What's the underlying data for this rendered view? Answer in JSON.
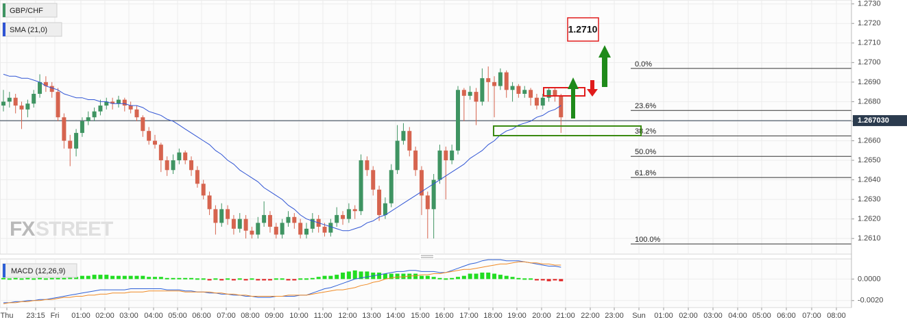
{
  "chart_data": {
    "type": "candlestick",
    "symbol": "GBP/CHF",
    "indicator_label": "SMA (21,0)",
    "watermark": [
      "FX",
      "STREET"
    ],
    "up_color": "#3f9462",
    "down_color": "#d6644f",
    "grid": true,
    "ylim": [
      1.2602,
      1.2732
    ],
    "yticks": [
      {
        "value": 1.273,
        "label": "1.2730"
      },
      {
        "value": 1.272,
        "label": "1.2720"
      },
      {
        "value": 1.271,
        "label": "1.2710"
      },
      {
        "value": 1.27,
        "label": "1.2700"
      },
      {
        "value": 1.269,
        "label": "1.2690"
      },
      {
        "value": 1.268,
        "label": "1.2680"
      },
      {
        "value": 1.267,
        "label": "1.2670"
      },
      {
        "value": 1.266,
        "label": "1.2660"
      },
      {
        "value": 1.265,
        "label": "1.2650"
      },
      {
        "value": 1.264,
        "label": "1.2640"
      },
      {
        "value": 1.263,
        "label": "1.2630"
      },
      {
        "value": 1.262,
        "label": "1.2620"
      },
      {
        "value": 1.261,
        "label": "1.2610"
      }
    ],
    "last_price": {
      "value": 1.26703,
      "label": "1.267030"
    },
    "target_label": "1.2710",
    "ohlc": [
      [
        1.2678,
        1.2686,
        1.2675,
        1.268
      ],
      [
        1.268,
        1.2685,
        1.2677,
        1.2682
      ],
      [
        1.2682,
        1.2684,
        1.2674,
        1.2678
      ],
      [
        1.2678,
        1.268,
        1.2666,
        1.2676
      ],
      [
        1.2676,
        1.2681,
        1.2672,
        1.2679
      ],
      [
        1.2679,
        1.2686,
        1.2677,
        1.2684
      ],
      [
        1.2684,
        1.2694,
        1.2682,
        1.269
      ],
      [
        1.269,
        1.2693,
        1.2685,
        1.2688
      ],
      [
        1.2688,
        1.269,
        1.2682,
        1.2685
      ],
      [
        1.2685,
        1.2687,
        1.267,
        1.2672
      ],
      [
        1.2672,
        1.2674,
        1.2656,
        1.266
      ],
      [
        1.266,
        1.2663,
        1.2647,
        1.2656
      ],
      [
        1.2656,
        1.2666,
        1.2652,
        1.2664
      ],
      [
        1.2664,
        1.2672,
        1.2662,
        1.267
      ],
      [
        1.267,
        1.2675,
        1.2668,
        1.2672
      ],
      [
        1.2672,
        1.2677,
        1.267,
        1.2675
      ],
      [
        1.2675,
        1.2681,
        1.2673,
        1.2678
      ],
      [
        1.2678,
        1.2682,
        1.2676,
        1.268
      ],
      [
        1.268,
        1.2682,
        1.2676,
        1.2679
      ],
      [
        1.2679,
        1.2683,
        1.2677,
        1.2681
      ],
      [
        1.2681,
        1.2682,
        1.2675,
        1.2678
      ],
      [
        1.2678,
        1.268,
        1.2674,
        1.2676
      ],
      [
        1.2676,
        1.2678,
        1.267,
        1.2672
      ],
      [
        1.2672,
        1.2673,
        1.2662,
        1.2665
      ],
      [
        1.2665,
        1.2667,
        1.2658,
        1.266
      ],
      [
        1.266,
        1.2663,
        1.2656,
        1.2658
      ],
      [
        1.2658,
        1.2659,
        1.2644,
        1.265
      ],
      [
        1.265,
        1.2652,
        1.2642,
        1.2645
      ],
      [
        1.2645,
        1.2653,
        1.2643,
        1.265
      ],
      [
        1.265,
        1.2656,
        1.2648,
        1.2654
      ],
      [
        1.2654,
        1.2655,
        1.2648,
        1.265
      ],
      [
        1.265,
        1.2652,
        1.2642,
        1.2645
      ],
      [
        1.2645,
        1.2647,
        1.2636,
        1.2638
      ],
      [
        1.2638,
        1.264,
        1.263,
        1.2632
      ],
      [
        1.2632,
        1.2634,
        1.2622,
        1.2625
      ],
      [
        1.2625,
        1.2627,
        1.2612,
        1.2618
      ],
      [
        1.2618,
        1.2628,
        1.2616,
        1.2625
      ],
      [
        1.2625,
        1.2627,
        1.2617,
        1.262
      ],
      [
        1.262,
        1.2622,
        1.2612,
        1.2615
      ],
      [
        1.2615,
        1.2623,
        1.2613,
        1.262
      ],
      [
        1.262,
        1.2622,
        1.261,
        1.2614
      ],
      [
        1.2614,
        1.2616,
        1.261,
        1.2612
      ],
      [
        1.2612,
        1.2621,
        1.261,
        1.2618
      ],
      [
        1.2618,
        1.2629,
        1.2616,
        1.2622
      ],
      [
        1.2622,
        1.2624,
        1.2613,
        1.2616
      ],
      [
        1.2616,
        1.2618,
        1.261,
        1.2612
      ],
      [
        1.2612,
        1.262,
        1.261,
        1.2618
      ],
      [
        1.2618,
        1.2624,
        1.2616,
        1.2621
      ],
      [
        1.2621,
        1.2623,
        1.2615,
        1.2618
      ],
      [
        1.2618,
        1.262,
        1.261,
        1.2612
      ],
      [
        1.2612,
        1.2618,
        1.261,
        1.2615
      ],
      [
        1.2615,
        1.2623,
        1.2613,
        1.262
      ],
      [
        1.262,
        1.2622,
        1.2613,
        1.2616
      ],
      [
        1.2616,
        1.2618,
        1.2611,
        1.2613
      ],
      [
        1.2613,
        1.262,
        1.2611,
        1.2618
      ],
      [
        1.2618,
        1.2626,
        1.2616,
        1.2622
      ],
      [
        1.2622,
        1.2624,
        1.2617,
        1.262
      ],
      [
        1.262,
        1.2628,
        1.2618,
        1.2625
      ],
      [
        1.2625,
        1.2627,
        1.262,
        1.2624
      ],
      [
        1.2624,
        1.2653,
        1.2622,
        1.265
      ],
      [
        1.265,
        1.2652,
        1.2642,
        1.2645
      ],
      [
        1.2645,
        1.2647,
        1.2632,
        1.2635
      ],
      [
        1.2635,
        1.2637,
        1.2619,
        1.2622
      ],
      [
        1.2622,
        1.2631,
        1.262,
        1.2628
      ],
      [
        1.2628,
        1.2648,
        1.2626,
        1.2645
      ],
      [
        1.2645,
        1.2668,
        1.2643,
        1.266
      ],
      [
        1.266,
        1.2669,
        1.2658,
        1.2665
      ],
      [
        1.2665,
        1.2667,
        1.2652,
        1.2655
      ],
      [
        1.2655,
        1.2657,
        1.2642,
        1.2645
      ],
      [
        1.2645,
        1.2647,
        1.2622,
        1.2632
      ],
      [
        1.2632,
        1.2634,
        1.261,
        1.2625
      ],
      [
        1.2625,
        1.2643,
        1.261,
        1.264
      ],
      [
        1.264,
        1.2658,
        1.2638,
        1.2655
      ],
      [
        1.2655,
        1.2657,
        1.263,
        1.265
      ],
      [
        1.265,
        1.2658,
        1.2648,
        1.2655
      ],
      [
        1.2655,
        1.2688,
        1.2653,
        1.2686
      ],
      [
        1.2686,
        1.2687,
        1.267,
        1.2683
      ],
      [
        1.2683,
        1.2688,
        1.2681,
        1.2685
      ],
      [
        1.2685,
        1.2687,
        1.2668,
        1.268
      ],
      [
        1.268,
        1.2697,
        1.2678,
        1.2692
      ],
      [
        1.2692,
        1.2698,
        1.268,
        1.269
      ],
      [
        1.269,
        1.2693,
        1.2672,
        1.2688
      ],
      [
        1.2688,
        1.2697,
        1.2686,
        1.2695
      ],
      [
        1.2695,
        1.2696,
        1.2682,
        1.2686
      ],
      [
        1.2686,
        1.269,
        1.268,
        1.2688
      ],
      [
        1.2688,
        1.2689,
        1.2682,
        1.2684
      ],
      [
        1.2684,
        1.2688,
        1.2682,
        1.2686
      ],
      [
        1.2686,
        1.2687,
        1.2678,
        1.2682
      ],
      [
        1.2682,
        1.2684,
        1.2676,
        1.2678
      ],
      [
        1.2678,
        1.2684,
        1.2676,
        1.2682
      ],
      [
        1.2682,
        1.2687,
        1.268,
        1.2686
      ],
      [
        1.2686,
        1.2687,
        1.268,
        1.2683
      ],
      [
        1.2683,
        1.2684,
        1.2664,
        1.2672
      ]
    ],
    "sma": {
      "color": "#2f54d4",
      "values": [
        1.2694,
        1.2693,
        1.2693,
        1.2692,
        1.2692,
        1.2691,
        1.269,
        1.2688,
        1.2687,
        1.2686,
        1.2684,
        1.2683,
        1.2682,
        1.2682,
        1.2681,
        1.2681,
        1.268,
        1.268,
        1.2679,
        1.2679,
        1.2679,
        1.2678,
        1.2678,
        1.2677,
        1.2675,
        1.2674,
        1.2673,
        1.2671,
        1.267,
        1.2668,
        1.2666,
        1.2664,
        1.2662,
        1.266,
        1.2658,
        1.2655,
        1.2653,
        1.265,
        1.2648,
        1.2645,
        1.2643,
        1.2641,
        1.2639,
        1.2636,
        1.2634,
        1.2632,
        1.263,
        1.2627,
        1.2625,
        1.2622,
        1.262,
        1.2619,
        1.2618,
        1.2617,
        1.2616,
        1.2615,
        1.2614,
        1.2614,
        1.2615,
        1.2616,
        1.2618,
        1.2619,
        1.2621,
        1.2622,
        1.2624,
        1.2626,
        1.2628,
        1.263,
        1.2632,
        1.2634,
        1.2636,
        1.2638,
        1.264,
        1.2642,
        1.2644,
        1.2646,
        1.2648,
        1.2651,
        1.2653,
        1.2655,
        1.2658,
        1.266,
        1.2663,
        1.2665,
        1.2666,
        1.2668,
        1.2669,
        1.267,
        1.2672,
        1.2673,
        1.2675,
        1.2676,
        1.2678
      ]
    },
    "fib_levels": [
      {
        "label": "0.0%",
        "price": 1.2697
      },
      {
        "label": "23.6%",
        "price": 1.26755
      },
      {
        "label": "38.2%",
        "price": 1.26625
      },
      {
        "label": "50.0%",
        "price": 1.2652
      },
      {
        "label": "61.8%",
        "price": 1.26412
      },
      {
        "label": "100.0%",
        "price": 1.26072
      }
    ],
    "time_labels": [
      "Thu",
      "23:15",
      "Fri",
      "01:00",
      "02:00",
      "03:00",
      "04:00",
      "05:00",
      "06:00",
      "07:00",
      "08:00",
      "09:00",
      "10:00",
      "11:00",
      "12:00",
      "13:00",
      "14:00",
      "15:00",
      "16:00",
      "17:00",
      "18:00",
      "19:00",
      "20:00",
      "21:00",
      "22:00",
      "23:00",
      "Sun",
      "01:00",
      "02:00",
      "03:00",
      "04:00",
      "05:00",
      "06:00",
      "07:00",
      "08:00"
    ],
    "macd": {
      "label": "MACD (12,26,9)",
      "ylim": [
        -0.00265,
        0.00187
      ],
      "yticks": [
        {
          "value": 0,
          "label": "0.0000"
        },
        {
          "value": -0.002,
          "label": "-0.0020"
        }
      ],
      "macd_line": {
        "color": "#2d5fd6",
        "values": [
          -0.0022,
          -0.0022,
          -0.0021,
          -0.0021,
          -0.002,
          -0.002,
          -0.0019,
          -0.0019,
          -0.0018,
          -0.0017,
          -0.0016,
          -0.0015,
          -0.0014,
          -0.0013,
          -0.0012,
          -0.0011,
          -0.001,
          -0.001,
          -0.001,
          -0.001,
          -0.001,
          -0.0009,
          -0.0009,
          -0.0009,
          -0.0009,
          -0.0009,
          -0.0009,
          -0.001,
          -0.001,
          -0.001,
          -0.0011,
          -0.0011,
          -0.0012,
          -0.0012,
          -0.0013,
          -0.0013,
          -0.0014,
          -0.0014,
          -0.0015,
          -0.0015,
          -0.0016,
          -0.0016,
          -0.0017,
          -0.0017,
          -0.0017,
          -0.0016,
          -0.0016,
          -0.0016,
          -0.0016,
          -0.0015,
          -0.0015,
          -0.0013,
          -0.0011,
          -0.0009,
          -0.0008,
          -0.0006,
          -0.0004,
          -0.0002,
          0,
          0.0001,
          0.0002,
          0.0003,
          0.0004,
          0.0005,
          0.0006,
          0.0007,
          0.0007,
          0.0008,
          0.0008,
          0.0007,
          0.0007,
          0.0007,
          0.0006,
          0.0006,
          0.0008,
          0.001,
          0.0012,
          0.0014,
          0.0015,
          0.0017,
          0.0018,
          0.0018,
          0.0018,
          0.0017,
          0.0017,
          0.0017,
          0.0016,
          0.0015,
          0.0014,
          0.0013,
          0.0012,
          0.0012,
          0.0011
        ]
      },
      "signal_line": {
        "color": "#f08a24",
        "values": [
          -0.0023,
          -0.0022,
          -0.0022,
          -0.0021,
          -0.0021,
          -0.002,
          -0.002,
          -0.0019,
          -0.0019,
          -0.0018,
          -0.0017,
          -0.0017,
          -0.0016,
          -0.0016,
          -0.0015,
          -0.0015,
          -0.0014,
          -0.0014,
          -0.0013,
          -0.0013,
          -0.0013,
          -0.0012,
          -0.0012,
          -0.0012,
          -0.0011,
          -0.0011,
          -0.0011,
          -0.0011,
          -0.0011,
          -0.0011,
          -0.0012,
          -0.0012,
          -0.0012,
          -0.0012,
          -0.0012,
          -0.0013,
          -0.0013,
          -0.0014,
          -0.0014,
          -0.0015,
          -0.0015,
          -0.0016,
          -0.0016,
          -0.0016,
          -0.0016,
          -0.0016,
          -0.0016,
          -0.0015,
          -0.0015,
          -0.0015,
          -0.0015,
          -0.0014,
          -0.0013,
          -0.0012,
          -0.0011,
          -0.001,
          -0.001,
          -0.0009,
          -0.0008,
          -0.0006,
          -0.0005,
          -0.0003,
          -0.0002,
          0,
          0.0001,
          0.0002,
          0.0002,
          0.0003,
          0.0003,
          0.0004,
          0.0004,
          0.0005,
          0.0005,
          0.0006,
          0.0007,
          0.0008,
          0.0009,
          0.0009,
          0.001,
          0.0011,
          0.0012,
          0.0013,
          0.0014,
          0.0014,
          0.0015,
          0.0016,
          0.0016,
          0.0015,
          0.0015,
          0.0014,
          0.0014,
          0.0013,
          0.0013
        ]
      },
      "histogram": {
        "up_color": "#22dd22",
        "down_color": "#e02020",
        "values": [
          0.0001,
          0,
          0.0001,
          0,
          0.0001,
          0,
          0.0001,
          0,
          0.0001,
          0.0001,
          0.0001,
          0.0002,
          0.0002,
          0.0003,
          0.0003,
          0.0004,
          0.0004,
          0.0004,
          0.0003,
          0.0003,
          0.0003,
          0.0003,
          0.0003,
          0.0003,
          0.0002,
          0.0002,
          0.0002,
          0.0001,
          0.0001,
          0.0001,
          0.0001,
          0.0001,
          0,
          0,
          -0.0001,
          0,
          -0.0001,
          0,
          -0.0001,
          0,
          -0.0001,
          0,
          -0.0001,
          -0.0001,
          -0.0001,
          0,
          0,
          -0.0001,
          -0.0001,
          0,
          0,
          0.0001,
          0.0002,
          0.0003,
          0.0003,
          0.0004,
          0.0006,
          0.0007,
          0.0008,
          0.0007,
          0.0007,
          0.0006,
          0.0006,
          0.0005,
          0.0005,
          0.0005,
          0.0005,
          0.0005,
          0.0005,
          0.0003,
          0.0003,
          0.0002,
          0.0001,
          0,
          0.0001,
          0.0002,
          0.0003,
          0.0005,
          0.0005,
          0.0006,
          0.0006,
          0.0005,
          0.0004,
          0.0003,
          0.0002,
          0.0001,
          0,
          0,
          -0.0001,
          -0.0001,
          -0.0002,
          -0.0001,
          -0.0002
        ]
      }
    }
  }
}
